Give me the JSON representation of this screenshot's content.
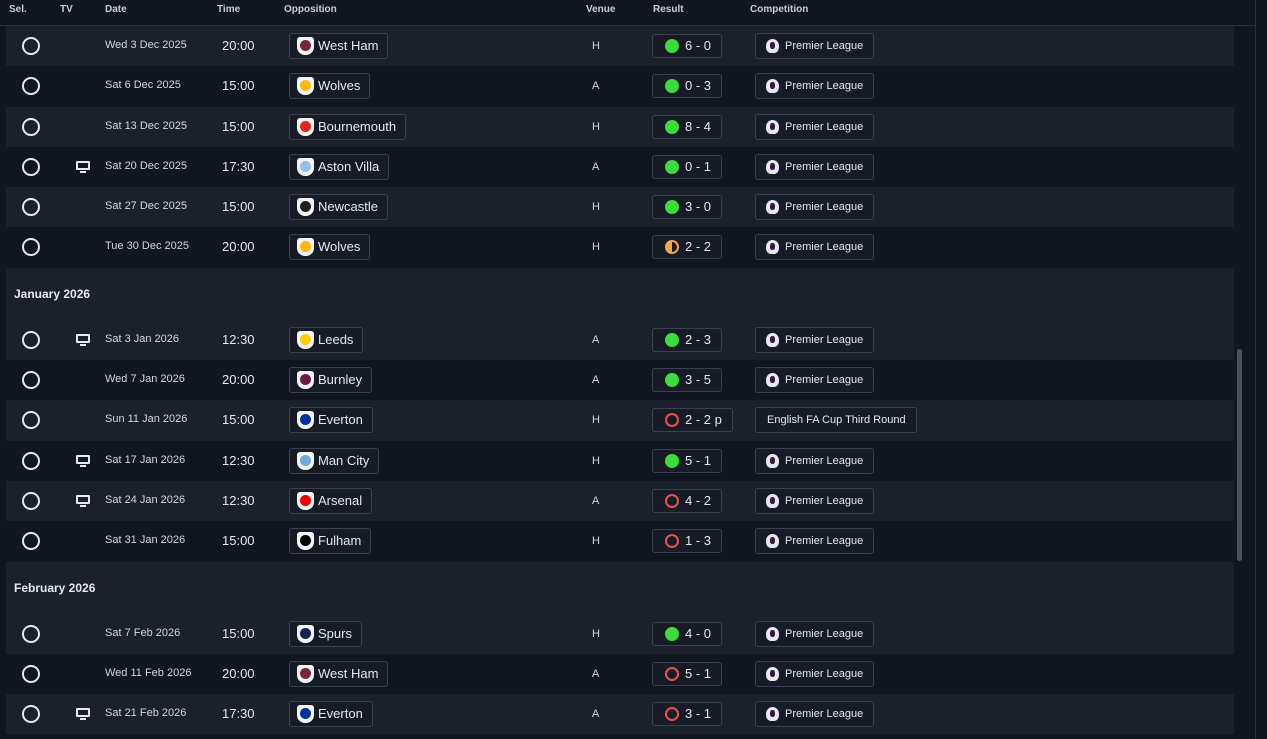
{
  "header": {
    "sel": "Sel.",
    "tv": "TV",
    "date": "Date",
    "time": "Time",
    "opposition": "Opposition",
    "venue": "Venue",
    "result": "Result",
    "competition": "Competition"
  },
  "sections": [
    {
      "month": "",
      "rows": [
        {
          "tv": false,
          "date": "Wed 3 Dec 2025",
          "time": "20:00",
          "opponent": "West Ham",
          "crest_color": "#7a263a",
          "venue": "H",
          "result": "6 - 0",
          "outcome": "win",
          "competition": "Premier League",
          "comp_logo": true
        },
        {
          "tv": false,
          "date": "Sat 6 Dec 2025",
          "time": "15:00",
          "opponent": "Wolves",
          "crest_color": "#fdb913",
          "venue": "A",
          "result": "0 - 3",
          "outcome": "win",
          "competition": "Premier League",
          "comp_logo": true
        },
        {
          "tv": false,
          "date": "Sat 13 Dec 2025",
          "time": "15:00",
          "opponent": "Bournemouth",
          "crest_color": "#da291c",
          "venue": "H",
          "result": "8 - 4",
          "outcome": "win",
          "competition": "Premier League",
          "comp_logo": true
        },
        {
          "tv": true,
          "date": "Sat 20 Dec 2025",
          "time": "17:30",
          "opponent": "Aston Villa",
          "crest_color": "#95bfe5",
          "venue": "A",
          "result": "0 - 1",
          "outcome": "win",
          "competition": "Premier League",
          "comp_logo": true
        },
        {
          "tv": false,
          "date": "Sat 27 Dec 2025",
          "time": "15:00",
          "opponent": "Newcastle",
          "crest_color": "#241f20",
          "venue": "H",
          "result": "3 - 0",
          "outcome": "win",
          "competition": "Premier League",
          "comp_logo": true
        },
        {
          "tv": false,
          "date": "Tue 30 Dec 2025",
          "time": "20:00",
          "opponent": "Wolves",
          "crest_color": "#fdb913",
          "venue": "H",
          "result": "2 - 2",
          "outcome": "draw",
          "competition": "Premier League",
          "comp_logo": true
        }
      ]
    },
    {
      "month": "January 2026",
      "rows": [
        {
          "tv": true,
          "date": "Sat 3 Jan 2026",
          "time": "12:30",
          "opponent": "Leeds",
          "crest_color": "#ffcd00",
          "venue": "A",
          "result": "2 - 3",
          "outcome": "win",
          "competition": "Premier League",
          "comp_logo": true
        },
        {
          "tv": false,
          "date": "Wed 7 Jan 2026",
          "time": "20:00",
          "opponent": "Burnley",
          "crest_color": "#6c1d45",
          "venue": "A",
          "result": "3 - 5",
          "outcome": "win",
          "competition": "Premier League",
          "comp_logo": true
        },
        {
          "tv": false,
          "date": "Sun 11 Jan 2026",
          "time": "15:00",
          "opponent": "Everton",
          "crest_color": "#003399",
          "venue": "H",
          "result": "2 - 2 p",
          "outcome": "loss",
          "competition": "English FA Cup Third Round",
          "comp_logo": false
        },
        {
          "tv": true,
          "date": "Sat 17 Jan 2026",
          "time": "12:30",
          "opponent": "Man City",
          "crest_color": "#6cabdd",
          "venue": "H",
          "result": "5 - 1",
          "outcome": "win",
          "competition": "Premier League",
          "comp_logo": true
        },
        {
          "tv": true,
          "date": "Sat 24 Jan 2026",
          "time": "12:30",
          "opponent": "Arsenal",
          "crest_color": "#ef0107",
          "venue": "A",
          "result": "4 - 2",
          "outcome": "loss",
          "competition": "Premier League",
          "comp_logo": true
        },
        {
          "tv": false,
          "date": "Sat 31 Jan 2026",
          "time": "15:00",
          "opponent": "Fulham",
          "crest_color": "#000000",
          "venue": "H",
          "result": "1 - 3",
          "outcome": "loss",
          "competition": "Premier League",
          "comp_logo": true
        }
      ]
    },
    {
      "month": "February 2026",
      "rows": [
        {
          "tv": false,
          "date": "Sat 7 Feb 2026",
          "time": "15:00",
          "opponent": "Spurs",
          "crest_color": "#132257",
          "venue": "H",
          "result": "4 - 0",
          "outcome": "win",
          "competition": "Premier League",
          "comp_logo": true
        },
        {
          "tv": false,
          "date": "Wed 11 Feb 2026",
          "time": "20:00",
          "opponent": "West Ham",
          "crest_color": "#7a263a",
          "venue": "A",
          "result": "5 - 1",
          "outcome": "loss",
          "competition": "Premier League",
          "comp_logo": true
        },
        {
          "tv": true,
          "date": "Sat 21 Feb 2026",
          "time": "17:30",
          "opponent": "Everton",
          "crest_color": "#003399",
          "venue": "A",
          "result": "3 - 1",
          "outcome": "loss",
          "competition": "Premier League",
          "comp_logo": true
        }
      ]
    }
  ]
}
